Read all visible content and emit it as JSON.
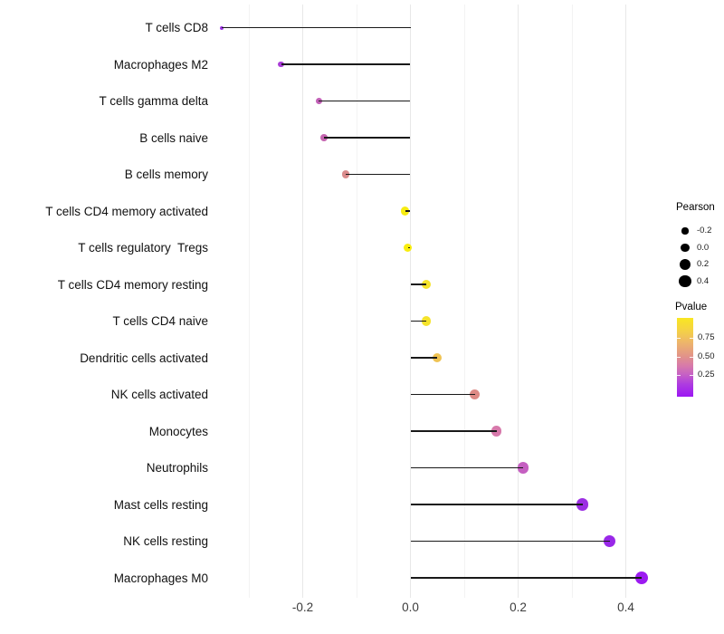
{
  "chart_data": {
    "type": "scatter",
    "style": "lollipop",
    "title": "",
    "xlabel": "",
    "ylabel": "",
    "xlim": [
      -0.365,
      0.475
    ],
    "x_ticks": [
      -0.2,
      0.0,
      0.2,
      0.4
    ],
    "x_tick_labels": [
      "-0.2",
      "0.0",
      "0.2",
      "0.4"
    ],
    "x_gridlines_major": [
      -0.2,
      0.0,
      0.2,
      0.4
    ],
    "x_gridlines_minor": [
      -0.3,
      -0.1,
      0.1,
      0.3
    ],
    "grid": true,
    "baseline_x": 0.0,
    "stick_color": "#191919",
    "rows": [
      {
        "label": "T cells CD8",
        "pearson": -0.35,
        "pvalue": 0.06,
        "color": "#9e33e6"
      },
      {
        "label": "Macrophages M2",
        "pearson": -0.24,
        "pvalue": 0.12,
        "color": "#a93cd7"
      },
      {
        "label": "T cells gamma delta",
        "pearson": -0.17,
        "pvalue": 0.25,
        "color": "#c160b6"
      },
      {
        "label": "B cells naive",
        "pearson": -0.16,
        "pvalue": 0.27,
        "color": "#c565b0"
      },
      {
        "label": "B cells memory",
        "pearson": -0.12,
        "pvalue": 0.48,
        "color": "#da8b8c"
      },
      {
        "label": "T cells CD4 memory activated",
        "pearson": -0.01,
        "pvalue": 0.92,
        "color": "#f7ec12"
      },
      {
        "label": "T cells regulatory  Tregs",
        "pearson": -0.005,
        "pvalue": 0.93,
        "color": "#f8ed0e"
      },
      {
        "label": "T cells CD4 memory resting",
        "pearson": 0.03,
        "pvalue": 0.87,
        "color": "#f5e32b"
      },
      {
        "label": "T cells CD4 naive",
        "pearson": 0.03,
        "pvalue": 0.87,
        "color": "#f5e32b"
      },
      {
        "label": "Dendritic cells activated",
        "pearson": 0.05,
        "pvalue": 0.77,
        "color": "#efc353"
      },
      {
        "label": "NK cells activated",
        "pearson": 0.12,
        "pvalue": 0.52,
        "color": "#dd8a85"
      },
      {
        "label": "Monocytes",
        "pearson": 0.16,
        "pvalue": 0.4,
        "color": "#d779ab"
      },
      {
        "label": "Neutrophils",
        "pearson": 0.21,
        "pvalue": 0.27,
        "color": "#c55fc1"
      },
      {
        "label": "Mast cells resting",
        "pearson": 0.32,
        "pvalue": 0.09,
        "color": "#9c2fe3"
      },
      {
        "label": "NK cells resting",
        "pearson": 0.37,
        "pvalue": 0.07,
        "color": "#9928e8"
      },
      {
        "label": "Macrophages M0",
        "pearson": 0.43,
        "pvalue": 0.04,
        "color": "#9c1bf1"
      }
    ],
    "legend": {
      "position": "right",
      "size_legend": {
        "title": "Pearson",
        "items": [
          {
            "label": "-0.2",
            "value": -0.2
          },
          {
            "label": "0.0",
            "value": 0.0
          },
          {
            "label": "0.2",
            "value": 0.2
          },
          {
            "label": "0.4",
            "value": 0.4
          }
        ],
        "dot_color": "#000000"
      },
      "color_legend": {
        "title": "Pvalue",
        "tick_labels": [
          "0.75",
          "0.50",
          "0.25"
        ],
        "tick_values": [
          0.75,
          0.5,
          0.25
        ],
        "range": [
          0.0,
          1.0
        ],
        "gradient_stops": [
          {
            "pos": 0.0,
            "color": "#f9e721"
          },
          {
            "pos": 0.15,
            "color": "#f5d343"
          },
          {
            "pos": 0.32,
            "color": "#edb46c"
          },
          {
            "pos": 0.48,
            "color": "#e29488"
          },
          {
            "pos": 0.6,
            "color": "#d87ba8"
          },
          {
            "pos": 0.71,
            "color": "#c763c3"
          },
          {
            "pos": 0.84,
            "color": "#ae3ce0"
          },
          {
            "pos": 1.0,
            "color": "#9c17f3"
          }
        ]
      }
    }
  }
}
